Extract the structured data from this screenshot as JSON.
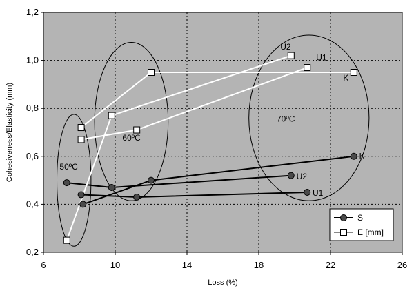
{
  "chart_data": {
    "type": "scatter",
    "xlabel": "Loss (%)",
    "ylabel": "Cohesiveness/Elasticity (mm)",
    "xlim": [
      6,
      26
    ],
    "ylim": [
      0.2,
      1.2
    ],
    "xticks": [
      6,
      10,
      14,
      18,
      22,
      26
    ],
    "yticks": [
      0.2,
      0.4,
      0.6,
      0.8,
      1.0,
      1.2
    ],
    "xtick_labels": [
      "6",
      "10",
      "14",
      "18",
      "22",
      "26"
    ],
    "ytick_labels": [
      "0,2",
      "0,4",
      "0,6",
      "0,8",
      "1,0",
      "1,2"
    ],
    "grid": true,
    "background": "#b4b4b4",
    "legend_position": "bottom-right",
    "series": [
      {
        "name": "S",
        "marker": "circle",
        "marker_color": "#4a4a4a",
        "line_color": "#000000",
        "points": [
          {
            "x": 7.3,
            "y": 0.49
          },
          {
            "x": 8.1,
            "y": 0.44
          },
          {
            "x": 8.2,
            "y": 0.4
          },
          {
            "x": 9.8,
            "y": 0.47
          },
          {
            "x": 11.2,
            "y": 0.43
          },
          {
            "x": 12.0,
            "y": 0.5
          },
          {
            "x": 19.8,
            "y": 0.52
          },
          {
            "x": 20.7,
            "y": 0.45
          },
          {
            "x": 23.3,
            "y": 0.6
          }
        ],
        "segments": [
          [
            [
              7.3,
              0.49
            ],
            [
              9.8,
              0.47
            ],
            [
              19.8,
              0.52
            ]
          ],
          [
            [
              8.1,
              0.44
            ],
            [
              11.2,
              0.43
            ],
            [
              20.7,
              0.45
            ]
          ],
          [
            [
              8.2,
              0.4
            ],
            [
              12.0,
              0.5
            ],
            [
              23.3,
              0.6
            ]
          ]
        ]
      },
      {
        "name": "E [mm]",
        "marker": "square",
        "marker_color": "#ffffff",
        "line_color": "#ffffff",
        "points": [
          {
            "x": 7.3,
            "y": 0.25
          },
          {
            "x": 8.1,
            "y": 0.72
          },
          {
            "x": 8.1,
            "y": 0.67
          },
          {
            "x": 9.8,
            "y": 0.77
          },
          {
            "x": 11.2,
            "y": 0.71
          },
          {
            "x": 12.0,
            "y": 0.95
          },
          {
            "x": 19.8,
            "y": 1.02
          },
          {
            "x": 20.7,
            "y": 0.97
          },
          {
            "x": 23.3,
            "y": 0.95
          }
        ],
        "segments": [
          [
            [
              7.3,
              0.25
            ],
            [
              9.8,
              0.77
            ],
            [
              19.8,
              1.02
            ]
          ],
          [
            [
              8.1,
              0.72
            ],
            [
              12.0,
              0.95
            ],
            [
              23.3,
              0.95
            ]
          ],
          [
            [
              8.1,
              0.67
            ],
            [
              11.2,
              0.71
            ],
            [
              20.7,
              0.97
            ]
          ]
        ]
      }
    ],
    "groups": [
      {
        "label": "50ºC",
        "cx": 7.7,
        "cy": 0.5,
        "rx": 0.95,
        "ry": 0.275,
        "label_x": 6.9,
        "label_y": 0.545
      },
      {
        "label": "60ºC",
        "cx": 10.9,
        "cy": 0.745,
        "rx": 2.05,
        "ry": 0.33,
        "label_x": 10.4,
        "label_y": 0.665
      },
      {
        "label": "70ºC",
        "cx": 20.8,
        "cy": 0.76,
        "rx": 3.35,
        "ry": 0.345,
        "label_x": 19.0,
        "label_y": 0.745
      }
    ],
    "annotations": [
      {
        "text": "U2",
        "x": 19.2,
        "y": 1.045
      },
      {
        "text": "U1",
        "x": 21.2,
        "y": 1.0
      },
      {
        "text": "K",
        "x": 22.7,
        "y": 0.915
      },
      {
        "text": "U2",
        "x": 20.1,
        "y": 0.505
      },
      {
        "text": "U1",
        "x": 21.0,
        "y": 0.435
      },
      {
        "text": "K",
        "x": 23.6,
        "y": 0.59
      }
    ]
  }
}
